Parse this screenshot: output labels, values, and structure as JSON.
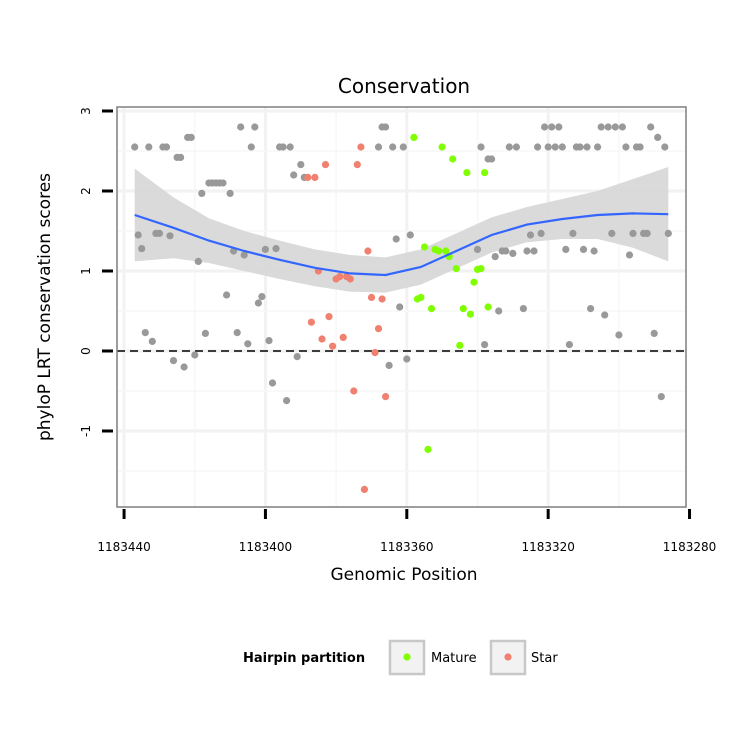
{
  "chart_data": {
    "type": "scatter",
    "title": "Conservation",
    "xlabel": "Genomic Position",
    "ylabel": "phyloP LRT conservation scores",
    "xlim": [
      1183442,
      1183281
    ],
    "ylim": [
      -1.95,
      3.05
    ],
    "x_ticks": [
      1183440,
      1183400,
      1183360,
      1183320,
      1183280
    ],
    "x_tick_labels": [
      "1183440",
      "1183400",
      "1183360",
      "1183320",
      "1183280"
    ],
    "y_ticks": [
      -1,
      0,
      1,
      2,
      3
    ],
    "y_tick_labels": [
      "-1",
      "0",
      "1",
      "2",
      "3"
    ],
    "reference_line": {
      "y": 0,
      "style": "dashed"
    },
    "legend": {
      "title": "Hairpin partition",
      "position": "bottom",
      "entries": [
        {
          "label": "Mature",
          "color": "#7fff00"
        },
        {
          "label": "Star",
          "color": "#f08070"
        }
      ]
    },
    "series": [
      {
        "name": "Other",
        "color": "#999999",
        "points": [
          [
            1183437,
            2.55
          ],
          [
            1183436,
            1.45
          ],
          [
            1183435,
            1.28
          ],
          [
            1183434,
            0.23
          ],
          [
            1183433,
            2.55
          ],
          [
            1183432,
            0.12
          ],
          [
            1183431,
            1.47
          ],
          [
            1183430,
            1.47
          ],
          [
            1183429,
            2.55
          ],
          [
            1183428,
            2.55
          ],
          [
            1183427,
            1.44
          ],
          [
            1183426,
            -0.12
          ],
          [
            1183425,
            2.42
          ],
          [
            1183424,
            2.42
          ],
          [
            1183423,
            -0.2
          ],
          [
            1183422,
            2.67
          ],
          [
            1183421,
            2.67
          ],
          [
            1183420,
            -0.05
          ],
          [
            1183419,
            1.12
          ],
          [
            1183418,
            1.97
          ],
          [
            1183417,
            0.22
          ],
          [
            1183416,
            2.1
          ],
          [
            1183415,
            2.1
          ],
          [
            1183414,
            2.1
          ],
          [
            1183413,
            2.1
          ],
          [
            1183412,
            2.1
          ],
          [
            1183411,
            0.7
          ],
          [
            1183410,
            1.97
          ],
          [
            1183409,
            1.25
          ],
          [
            1183408,
            0.23
          ],
          [
            1183407,
            2.8
          ],
          [
            1183406,
            1.2
          ],
          [
            1183405,
            0.09
          ],
          [
            1183404,
            2.55
          ],
          [
            1183403,
            2.8
          ],
          [
            1183402,
            0.6
          ],
          [
            1183401,
            0.68
          ],
          [
            1183400,
            1.27
          ],
          [
            1183399,
            0.13
          ],
          [
            1183398,
            -0.4
          ],
          [
            1183397,
            1.28
          ],
          [
            1183396,
            2.55
          ],
          [
            1183395,
            2.55
          ],
          [
            1183394,
            -0.62
          ],
          [
            1183393,
            2.55
          ],
          [
            1183392,
            2.2
          ],
          [
            1183391,
            -0.07
          ],
          [
            1183390,
            2.33
          ],
          [
            1183389,
            2.17
          ],
          [
            1183368,
            2.55
          ],
          [
            1183367,
            2.8
          ],
          [
            1183366,
            2.8
          ],
          [
            1183365,
            -0.18
          ],
          [
            1183364,
            2.55
          ],
          [
            1183363,
            1.4
          ],
          [
            1183362,
            0.55
          ],
          [
            1183361,
            2.55
          ],
          [
            1183360,
            -0.1
          ],
          [
            1183359,
            1.45
          ],
          [
            1183340,
            1.27
          ],
          [
            1183339,
            2.55
          ],
          [
            1183338,
            0.08
          ],
          [
            1183337,
            2.4
          ],
          [
            1183336,
            2.4
          ],
          [
            1183335,
            1.18
          ],
          [
            1183334,
            0.5
          ],
          [
            1183333,
            1.25
          ],
          [
            1183332,
            1.25
          ],
          [
            1183331,
            2.55
          ],
          [
            1183330,
            1.22
          ],
          [
            1183329,
            2.55
          ],
          [
            1183327,
            0.53
          ],
          [
            1183326,
            1.25
          ],
          [
            1183325,
            1.45
          ],
          [
            1183324,
            1.25
          ],
          [
            1183323,
            2.55
          ],
          [
            1183322,
            1.47
          ],
          [
            1183321,
            2.8
          ],
          [
            1183320,
            2.55
          ],
          [
            1183319,
            2.8
          ],
          [
            1183318,
            2.55
          ],
          [
            1183317,
            2.8
          ],
          [
            1183316,
            2.55
          ],
          [
            1183315,
            1.27
          ],
          [
            1183314,
            0.08
          ],
          [
            1183313,
            1.47
          ],
          [
            1183312,
            2.55
          ],
          [
            1183311,
            2.55
          ],
          [
            1183310,
            1.27
          ],
          [
            1183309,
            2.55
          ],
          [
            1183308,
            0.53
          ],
          [
            1183307,
            1.25
          ],
          [
            1183306,
            2.55
          ],
          [
            1183305,
            2.8
          ],
          [
            1183304,
            0.45
          ],
          [
            1183303,
            2.8
          ],
          [
            1183302,
            1.47
          ],
          [
            1183301,
            2.8
          ],
          [
            1183300,
            0.2
          ],
          [
            1183299,
            2.8
          ],
          [
            1183298,
            2.55
          ],
          [
            1183297,
            1.2
          ],
          [
            1183296,
            1.47
          ],
          [
            1183295,
            2.55
          ],
          [
            1183294,
            2.55
          ],
          [
            1183293,
            1.47
          ],
          [
            1183292,
            1.47
          ],
          [
            1183291,
            2.8
          ],
          [
            1183290,
            0.22
          ],
          [
            1183289,
            2.67
          ],
          [
            1183288,
            -0.57
          ],
          [
            1183287,
            2.55
          ],
          [
            1183286,
            1.47
          ]
        ]
      },
      {
        "name": "Star",
        "color": "#f08070",
        "points": [
          [
            1183388,
            2.17
          ],
          [
            1183387,
            0.36
          ],
          [
            1183386,
            2.17
          ],
          [
            1183385,
            1.0
          ],
          [
            1183384,
            0.15
          ],
          [
            1183383,
            2.33
          ],
          [
            1183382,
            0.43
          ],
          [
            1183381,
            0.06
          ],
          [
            1183380,
            0.9
          ],
          [
            1183379,
            0.93
          ],
          [
            1183378,
            0.17
          ],
          [
            1183377,
            0.93
          ],
          [
            1183376,
            0.9
          ],
          [
            1183375,
            -0.5
          ],
          [
            1183374,
            2.33
          ],
          [
            1183373,
            2.55
          ],
          [
            1183372,
            -1.73
          ],
          [
            1183371,
            1.25
          ],
          [
            1183370,
            0.67
          ],
          [
            1183369,
            -0.02
          ],
          [
            1183368,
            0.28
          ],
          [
            1183367,
            0.65
          ],
          [
            1183366,
            -0.57
          ]
        ]
      },
      {
        "name": "Mature",
        "color": "#7fff00",
        "points": [
          [
            1183358,
            2.67
          ],
          [
            1183357,
            0.65
          ],
          [
            1183356,
            0.67
          ],
          [
            1183355,
            1.3
          ],
          [
            1183354,
            -1.23
          ],
          [
            1183353,
            0.53
          ],
          [
            1183352,
            1.27
          ],
          [
            1183351,
            1.25
          ],
          [
            1183350,
            2.55
          ],
          [
            1183349,
            1.25
          ],
          [
            1183348,
            1.18
          ],
          [
            1183347,
            2.4
          ],
          [
            1183346,
            1.03
          ],
          [
            1183345,
            0.07
          ],
          [
            1183344,
            0.53
          ],
          [
            1183343,
            2.23
          ],
          [
            1183342,
            0.46
          ],
          [
            1183341,
            0.86
          ],
          [
            1183340,
            1.02
          ],
          [
            1183339,
            1.03
          ],
          [
            1183338,
            2.23
          ],
          [
            1183337,
            0.55
          ]
        ]
      }
    ],
    "smooth": {
      "name": "Loess fit",
      "color": "#3366ff",
      "ribbon_color": "#d6d6d6",
      "x": [
        1183437,
        1183426,
        1183416,
        1183406,
        1183396,
        1183386,
        1183376,
        1183366,
        1183356,
        1183346,
        1183336,
        1183326,
        1183316,
        1183306,
        1183296,
        1183286
      ],
      "y": [
        1.7,
        1.54,
        1.38,
        1.25,
        1.14,
        1.04,
        0.97,
        0.95,
        1.05,
        1.25,
        1.45,
        1.58,
        1.65,
        1.7,
        1.72,
        1.71
      ],
      "upper": [
        2.28,
        1.92,
        1.66,
        1.5,
        1.38,
        1.27,
        1.2,
        1.17,
        1.27,
        1.47,
        1.67,
        1.8,
        1.9,
        2.0,
        2.15,
        2.3
      ],
      "lower": [
        1.12,
        1.16,
        1.1,
        1.0,
        0.9,
        0.81,
        0.74,
        0.73,
        0.83,
        1.03,
        1.23,
        1.36,
        1.4,
        1.4,
        1.29,
        1.12
      ]
    }
  }
}
